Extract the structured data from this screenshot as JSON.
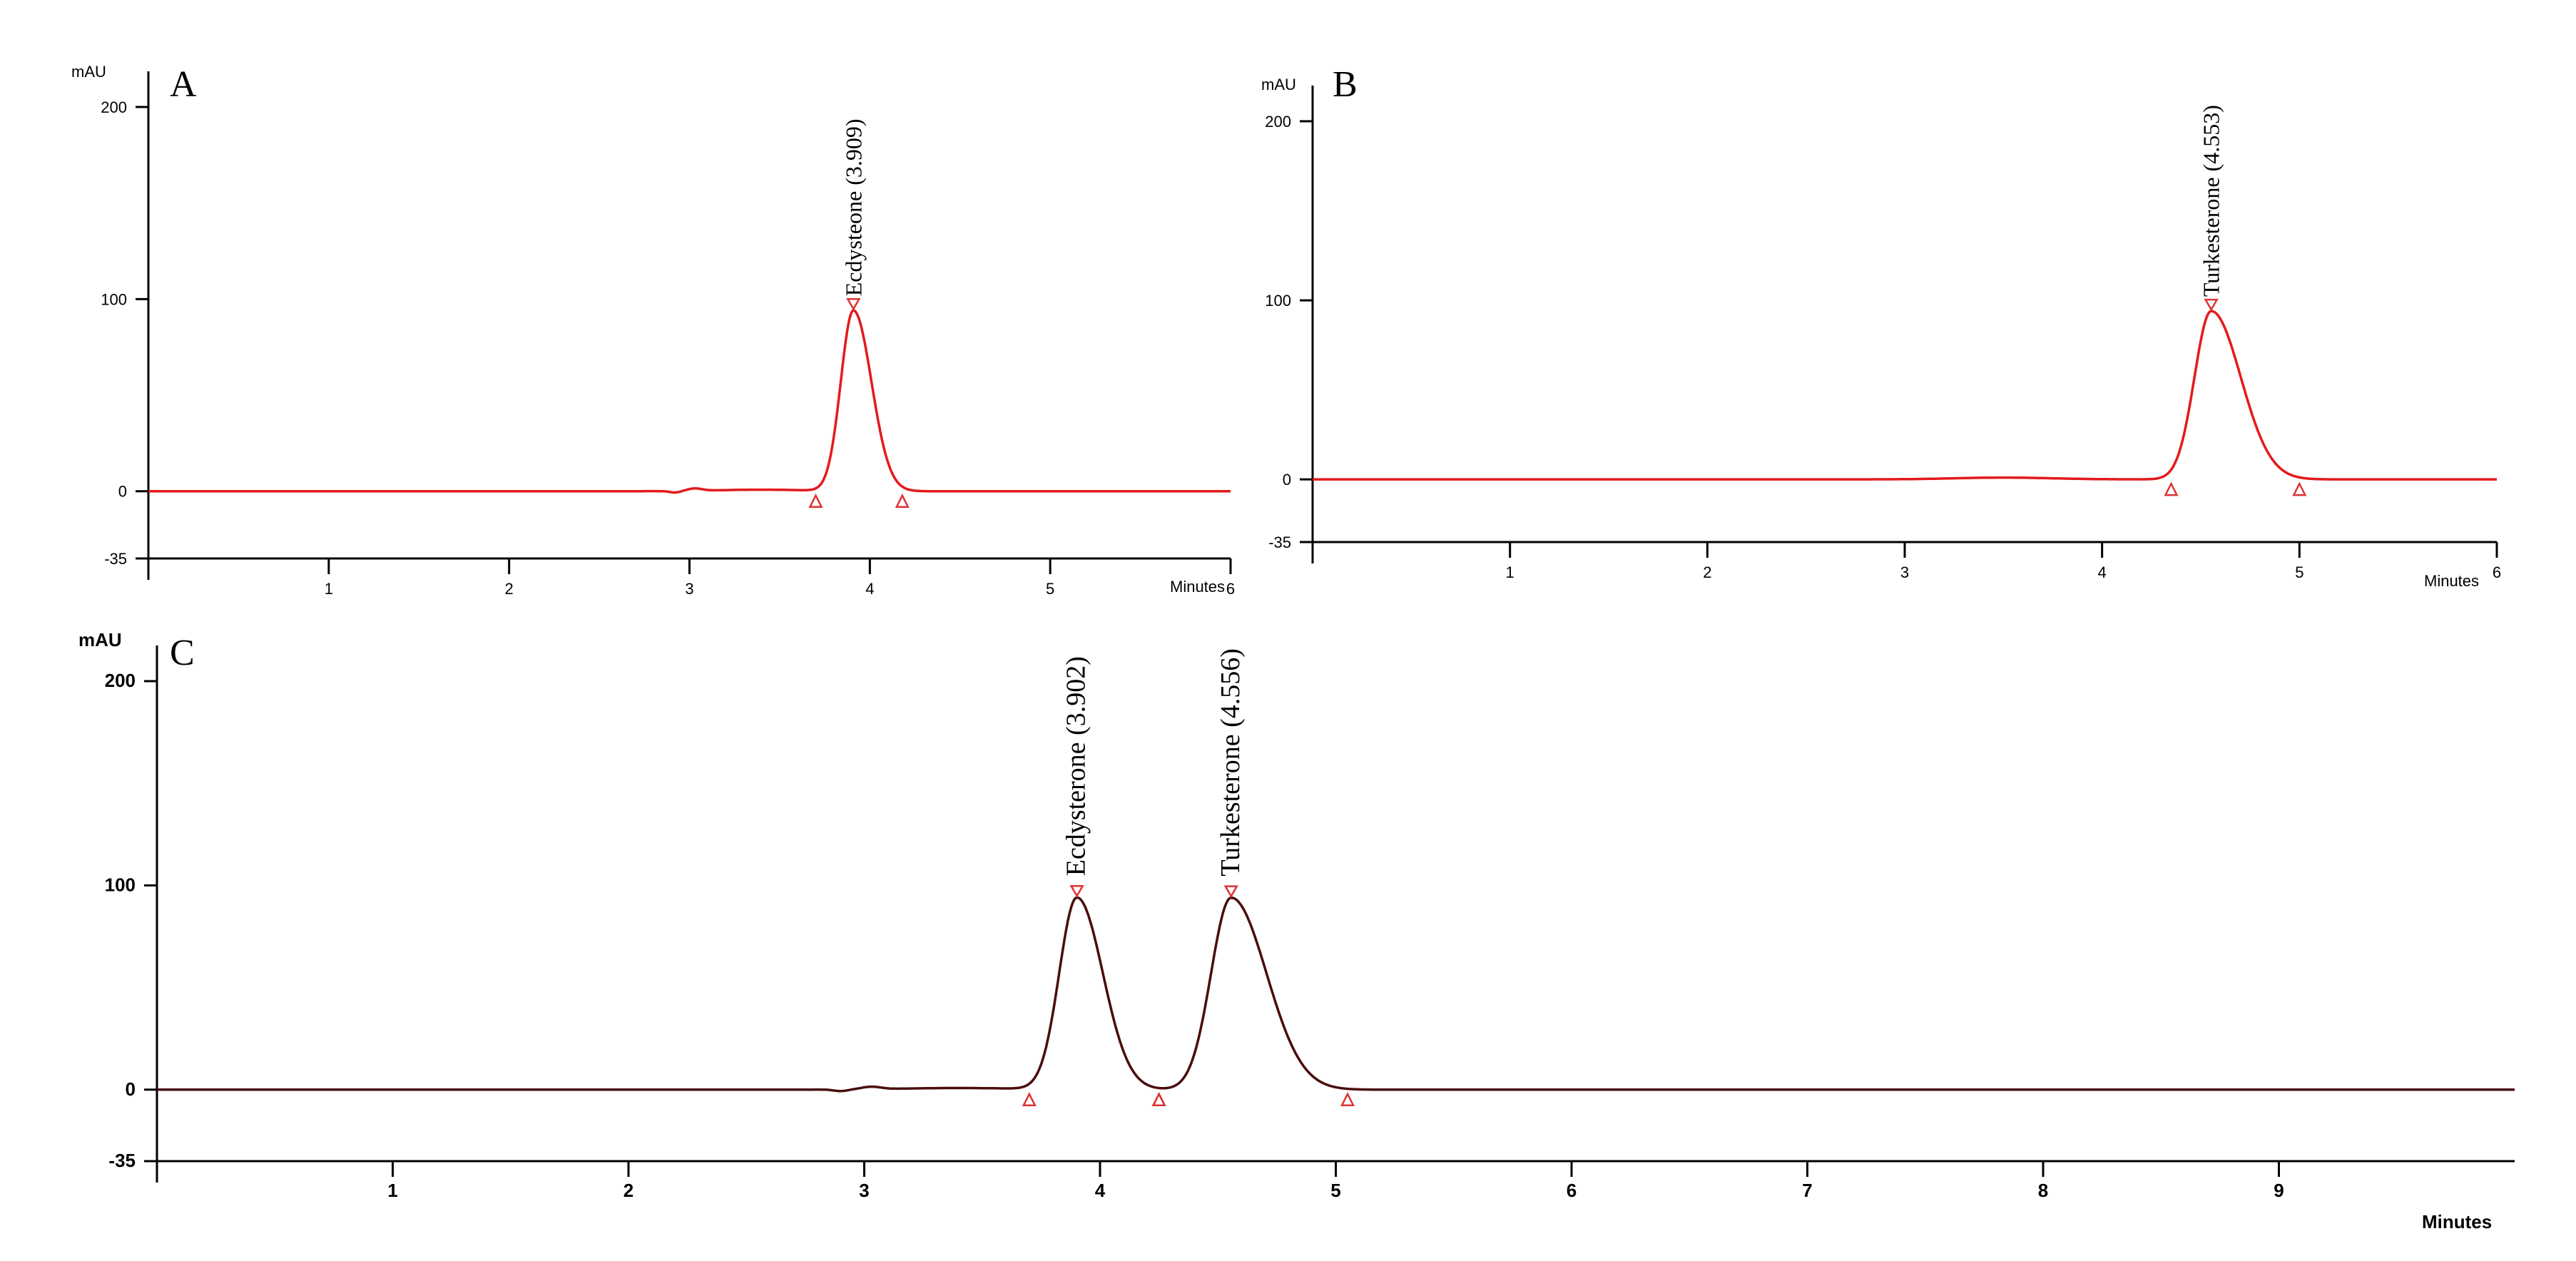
{
  "chart_data": [
    {
      "type": "line",
      "panel_label": "A",
      "title": "",
      "xlabel": "Minutes",
      "ylabel": "mAU",
      "xlim": [
        0,
        6
      ],
      "ylim": [
        -35,
        200
      ],
      "x_ticks": [
        "1",
        "2",
        "3",
        "4",
        "5",
        "6"
      ],
      "y_ticks": [
        "200",
        "100",
        "0",
        "-35"
      ],
      "baseline": 0,
      "peaks": [
        {
          "compound": "Ecdysteone",
          "rt_label": "3.909",
          "rt": 3.909,
          "height": 94,
          "sigma_left": 0.07,
          "sigma_right": 0.1,
          "start": 3.7,
          "end": 4.18
        }
      ],
      "minor_features": [
        {
          "x": 2.92,
          "y": -0.8,
          "w": 0.03
        },
        {
          "x": 3.03,
          "y": 1.2,
          "w": 0.04
        },
        {
          "x": 3.4,
          "y": 0.8,
          "w": 0.25
        }
      ],
      "color": "#e31a1c"
    },
    {
      "type": "line",
      "panel_label": "B",
      "title": "",
      "xlabel": "Minutes",
      "ylabel": "mAU",
      "xlim": [
        0,
        6
      ],
      "ylim": [
        -35,
        200
      ],
      "x_ticks": [
        "1",
        "2",
        "3",
        "4",
        "5",
        "6"
      ],
      "y_ticks": [
        "200",
        "100",
        "0",
        "-35"
      ],
      "baseline": 0,
      "peaks": [
        {
          "compound": "Turkesterone",
          "rt_label": "4.553",
          "rt": 4.553,
          "height": 94,
          "sigma_left": 0.085,
          "sigma_right": 0.15,
          "start": 4.35,
          "end": 5.0
        }
      ],
      "minor_features": [
        {
          "x": 3.5,
          "y": 1.0,
          "w": 0.25
        }
      ],
      "color": "#e31a1c"
    },
    {
      "type": "line",
      "panel_label": "C",
      "title": "",
      "xlabel": "Minutes",
      "ylabel": "mAU",
      "xlim": [
        0,
        10
      ],
      "ylim": [
        -35,
        200
      ],
      "x_ticks": [
        "1",
        "2",
        "3",
        "4",
        "5",
        "6",
        "7",
        "8",
        "9"
      ],
      "y_ticks": [
        "200",
        "100",
        "0",
        "-35"
      ],
      "baseline": 0,
      "peaks": [
        {
          "compound": "Ecdysterone",
          "rt_label": "3.902",
          "rt": 3.902,
          "height": 94,
          "sigma_left": 0.075,
          "sigma_right": 0.11,
          "start": 3.7,
          "end": 4.25
        },
        {
          "compound": "Turkesterone",
          "rt_label": "4.556",
          "rt": 4.556,
          "height": 94,
          "sigma_left": 0.085,
          "sigma_right": 0.15,
          "start": 4.25,
          "end": 5.05
        }
      ],
      "minor_features": [
        {
          "x": 2.9,
          "y": -0.8,
          "w": 0.03
        },
        {
          "x": 3.03,
          "y": 1.2,
          "w": 0.04
        },
        {
          "x": 3.4,
          "y": 0.8,
          "w": 0.25
        }
      ],
      "color": "#4a0d0d"
    }
  ]
}
